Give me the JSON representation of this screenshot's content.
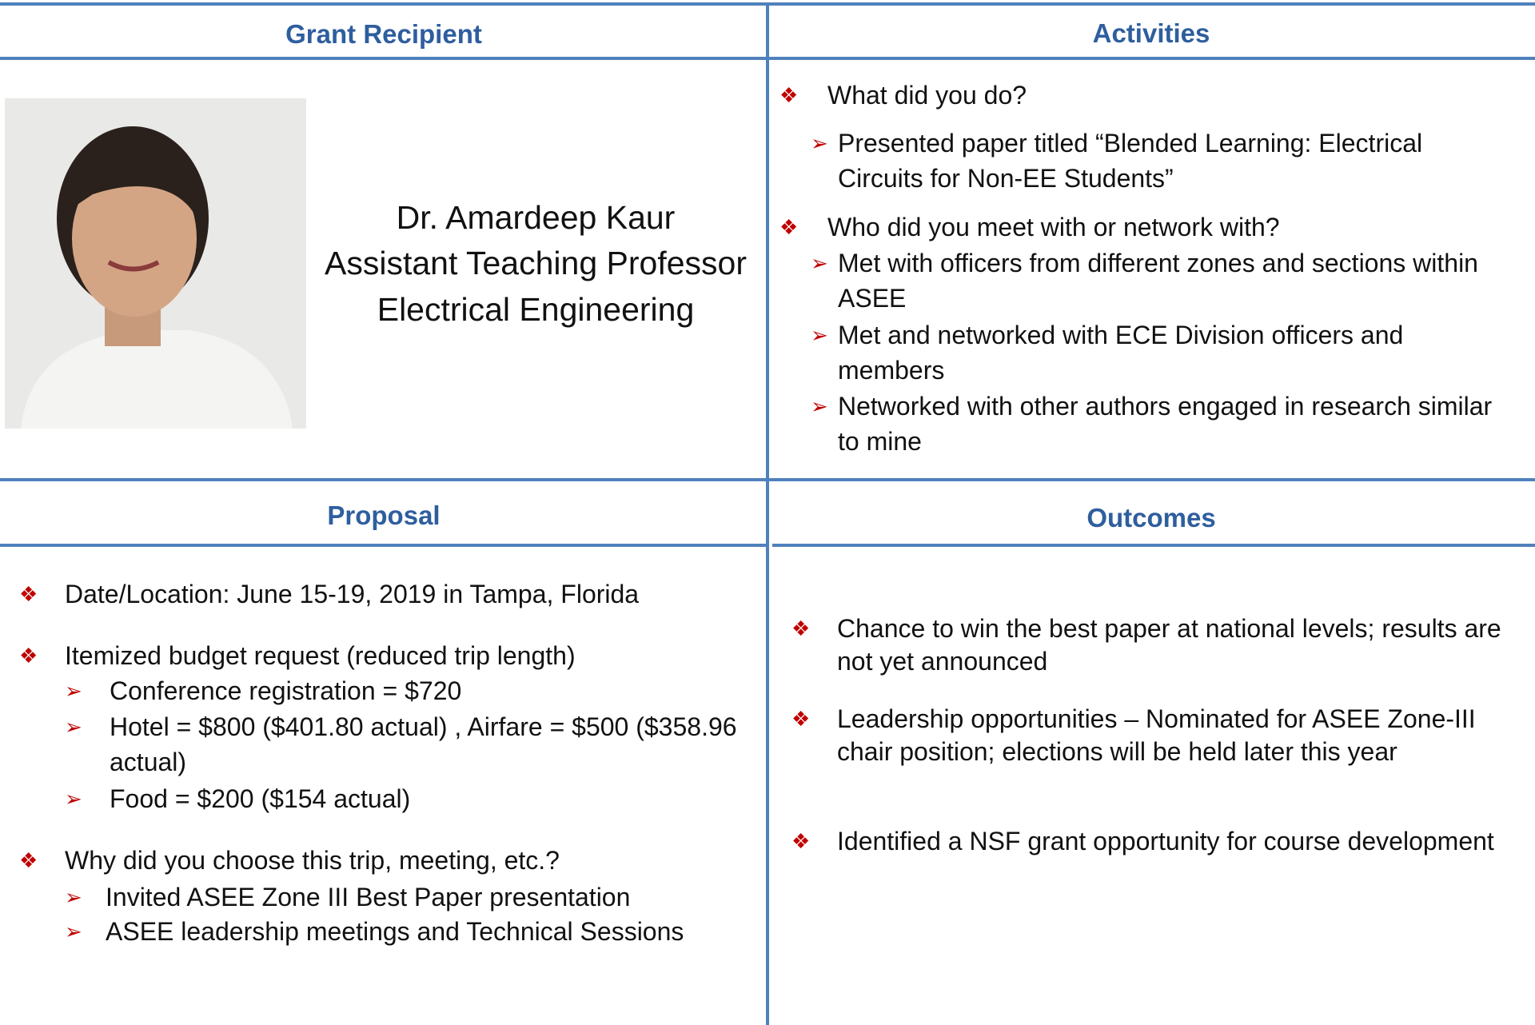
{
  "grant_recipient": {
    "heading": "Grant Recipient",
    "name": "Dr.  Amardeep Kaur",
    "title": "Assistant Teaching Professor",
    "department": "Electrical Engineering"
  },
  "activities": {
    "heading": "Activities",
    "items": [
      {
        "text": "What did you do?",
        "subitems": [
          "Presented paper titled “Blended Learning: Electrical Circuits for Non-EE Students”"
        ]
      },
      {
        "text": "Who did you meet with or network with?",
        "subitems": [
          "Met with officers from different zones and sections within ASEE",
          "Met and networked with ECE Division officers and members",
          "Networked with other authors engaged in research similar to mine"
        ]
      }
    ]
  },
  "proposal": {
    "heading": "Proposal",
    "items": [
      {
        "text": "Date/Location: June 15-19, 2019 in Tampa, Florida",
        "subitems": []
      },
      {
        "text": "Itemized budget request (reduced trip length)",
        "subitems": [
          "Conference registration = $720",
          "Hotel = $800 ($401.80 actual) , Airfare = $500 ($358.96 actual)",
          "Food = $200 ($154 actual)"
        ]
      },
      {
        "text": "Why did you choose this trip, meeting, etc.?",
        "subitems": [
          "Invited ASEE Zone III Best Paper presentation",
          "ASEE leadership meetings and Technical Sessions"
        ]
      }
    ]
  },
  "outcomes": {
    "heading": "Outcomes",
    "items": [
      {
        "text": "Chance to win the best paper at national levels; results are not yet announced",
        "subitems": []
      },
      {
        "text": "Leadership opportunities – Nominated for ASEE Zone-III chair position; elections will be held later this year",
        "subitems": []
      },
      {
        "text": "Identified a NSF grant opportunity for course development",
        "subitems": []
      }
    ]
  }
}
